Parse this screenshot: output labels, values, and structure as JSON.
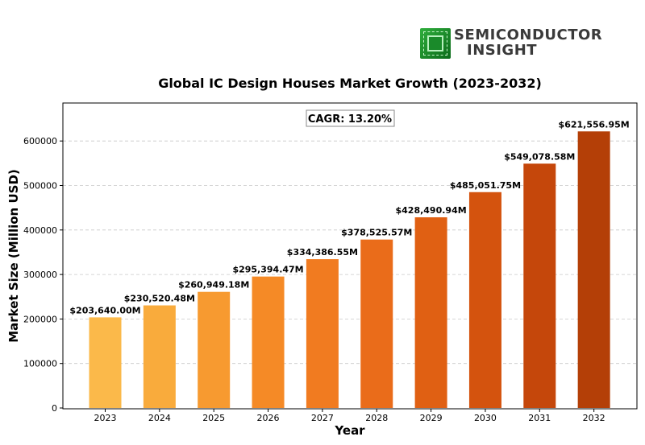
{
  "logo": {
    "line1": "SEMICONDUCTOR",
    "line2": "INSIGHT",
    "icon": "chip-icon",
    "color": "#2e9e3a"
  },
  "chart_data": {
    "type": "bar",
    "title": "Global IC Design Houses Market Growth (2023-2032)",
    "xlabel": "Year",
    "ylabel": "Market Size (Million USD)",
    "annotation": "CAGR: 13.20%",
    "categories": [
      "2023",
      "2024",
      "2025",
      "2026",
      "2027",
      "2028",
      "2029",
      "2030",
      "2031",
      "2032"
    ],
    "values": [
      203640.0,
      230520.48,
      260949.18,
      295394.47,
      334386.55,
      378525.57,
      428490.94,
      485051.75,
      549078.58,
      621556.95
    ],
    "value_labels": [
      "$203,640.00M",
      "$230,520.48M",
      "$260,949.18M",
      "$295,394.47M",
      "$334,386.55M",
      "$378,525.57M",
      "$428,490.94M",
      "$485,051.75M",
      "$549,078.58M",
      "$621,556.95M"
    ],
    "yticks": [
      0,
      100000,
      200000,
      300000,
      400000,
      500000,
      600000
    ],
    "ylim": [
      0,
      680000
    ],
    "grid": true,
    "grid_axis": "y",
    "bar_colors": [
      "#fbb94a",
      "#f9ab3c",
      "#f79a30",
      "#f58a26",
      "#f17b20",
      "#ea6c1a",
      "#e06013",
      "#d4530e",
      "#c5470b",
      "#b43f07"
    ]
  }
}
